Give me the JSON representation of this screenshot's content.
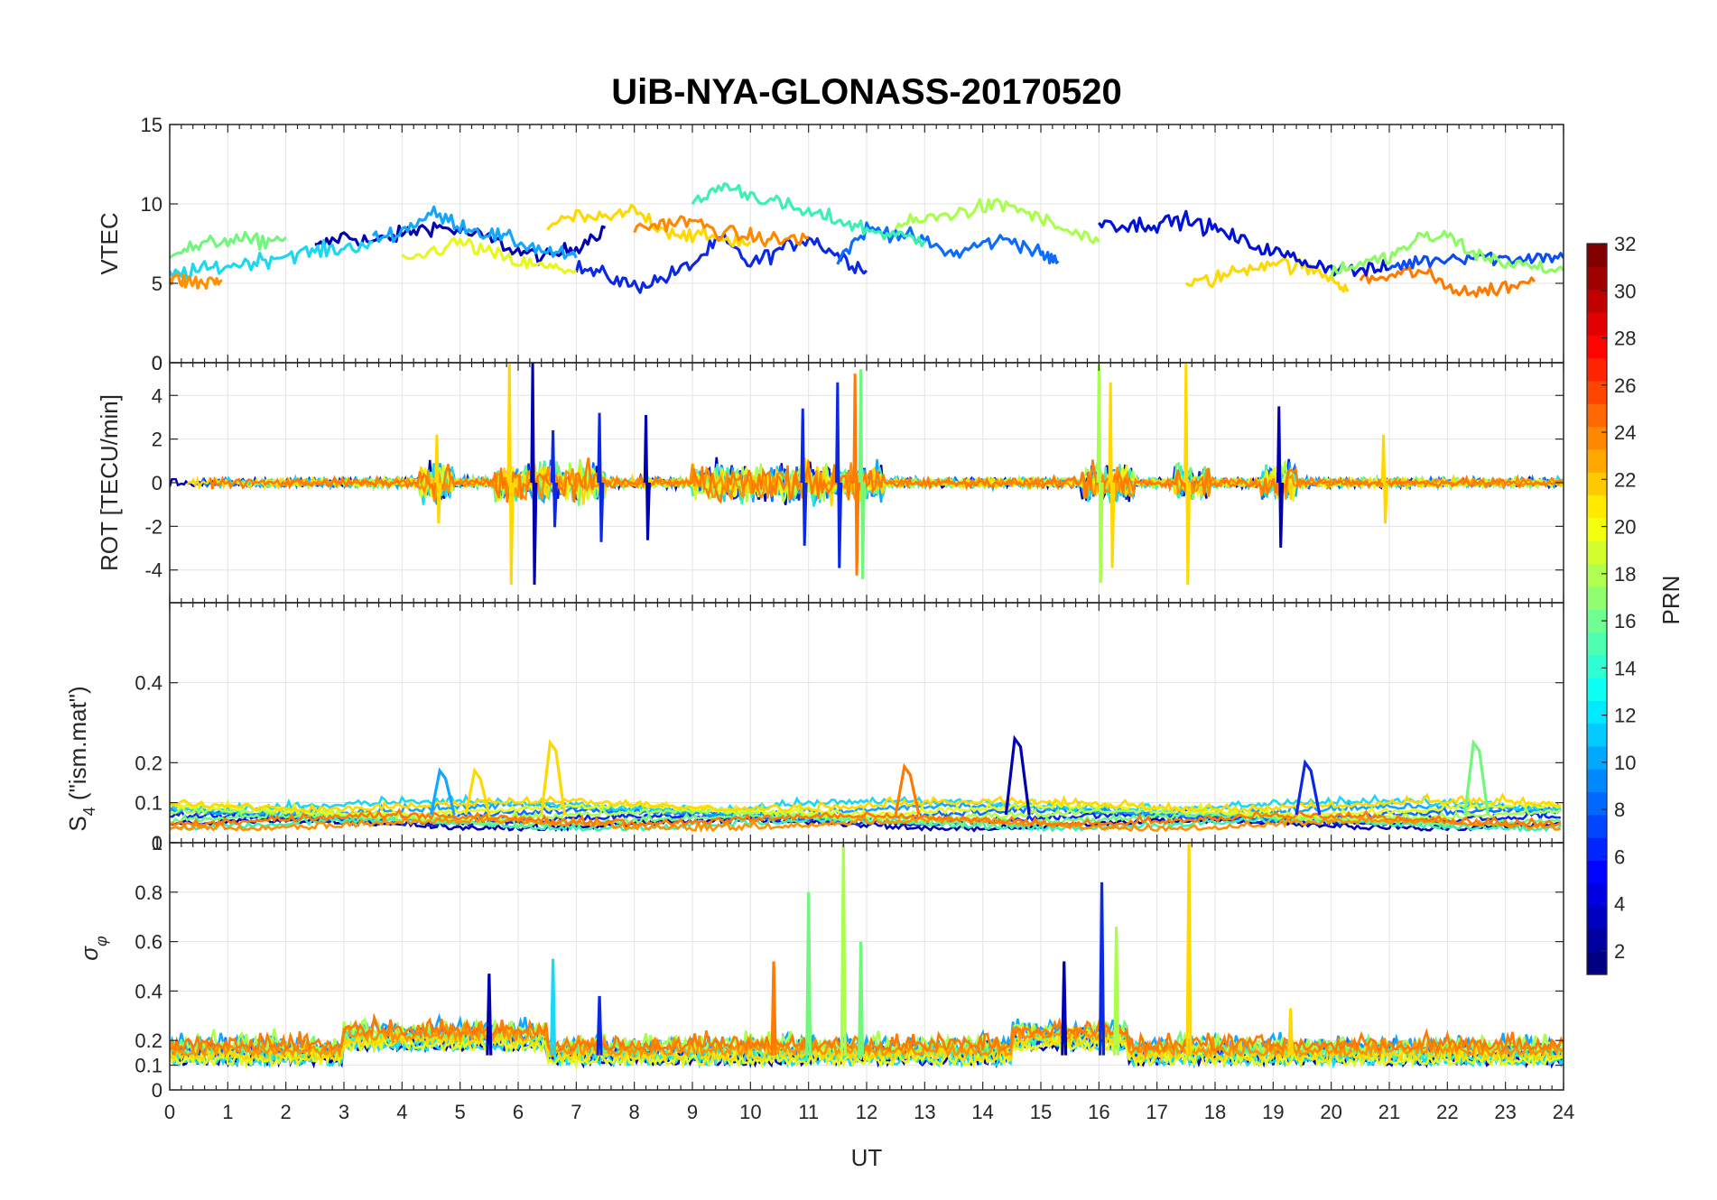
{
  "figure": {
    "title": "UiB-NYA-GLONASS-20170520",
    "xlabel": "UT"
  },
  "colorbar": {
    "label": "PRN",
    "range": [
      1,
      32
    ],
    "ticks": [
      "2",
      "4",
      "6",
      "8",
      "10",
      "12",
      "14",
      "16",
      "18",
      "20",
      "22",
      "24",
      "26",
      "28",
      "30",
      "32"
    ]
  },
  "chart_data": [
    {
      "type": "line",
      "id": "vtec",
      "ylabel": "VTEC",
      "xlim": [
        0,
        24
      ],
      "ylim": [
        0,
        15
      ],
      "yticks": [
        0,
        5,
        10,
        15
      ],
      "ytick_labels": [
        "0",
        "5",
        "10",
        "15"
      ],
      "grid": true,
      "series": [
        {
          "prn": 2,
          "color": "#0000b0",
          "x": [
            2.5,
            3,
            3.5,
            4,
            4.5,
            5,
            5.5,
            6,
            6.5,
            7,
            7.5
          ],
          "y": [
            7.2,
            8,
            7.6,
            8.1,
            8.6,
            8.3,
            7.8,
            7.0,
            6.6,
            7.3,
            8.5
          ]
        },
        {
          "prn": 4,
          "color": "#0a28e6",
          "x": [
            7,
            7.5,
            8,
            8.5,
            9,
            9.5,
            10,
            10.5,
            11,
            11.5,
            12
          ],
          "y": [
            6,
            5.5,
            4.8,
            5.3,
            6.2,
            7.8,
            6.2,
            7.1,
            7.9,
            6.8,
            5.8
          ]
        },
        {
          "prn": 8,
          "color": "#0c6cff",
          "x": [
            11.5,
            12,
            12.5,
            13,
            13.5,
            14,
            14.5,
            15,
            15.3
          ],
          "y": [
            6.5,
            8.4,
            8.2,
            7.6,
            6.8,
            7.5,
            7.8,
            6.8,
            6.4
          ]
        },
        {
          "prn": 10,
          "color": "#12a6ff",
          "x": [
            3.5,
            4,
            4.5,
            5,
            5.5,
            6,
            6.5,
            7
          ],
          "y": [
            7.8,
            8.3,
            9.4,
            8.7,
            8.1,
            7.6,
            7.0,
            6.6
          ]
        },
        {
          "prn": 12,
          "color": "#19d8f0",
          "x": [
            0,
            0.5,
            1,
            1.5,
            2,
            2.5,
            3,
            3.5
          ],
          "y": [
            5.5,
            5.8,
            6.1,
            6.4,
            6.8,
            7.0,
            7.2,
            7.6
          ]
        },
        {
          "prn": 14,
          "color": "#3cf0b4",
          "x": [
            9,
            9.5,
            10,
            10.5,
            11,
            11.5,
            12,
            12.5,
            13
          ],
          "y": [
            9.8,
            11.2,
            10.6,
            10.0,
            9.4,
            9.0,
            8.4,
            8.0,
            7.7
          ]
        },
        {
          "prn": 16,
          "color": "#70f87c",
          "x": [
            0,
            0.5,
            1,
            1.5,
            2
          ],
          "y": [
            7.0,
            7.3,
            7.8,
            7.6,
            7.9
          ]
        },
        {
          "prn": 17,
          "color": "#a8ff4c",
          "x": [
            12.5,
            13,
            13.5,
            14,
            14.5,
            15,
            15.5,
            16
          ],
          "y": [
            8.6,
            9.0,
            9.4,
            9.8,
            9.9,
            9.0,
            8.2,
            7.6
          ]
        },
        {
          "prn": 19,
          "color": "#e8f81c",
          "x": [
            4,
            4.5,
            5,
            5.5,
            6,
            6.5,
            7
          ],
          "y": [
            6.2,
            7.0,
            7.6,
            6.9,
            6.3,
            6.0,
            5.8
          ]
        },
        {
          "prn": 20,
          "color": "#ffd800",
          "x": [
            6.5,
            7,
            7.5,
            8,
            8.5,
            9,
            9.5,
            10
          ],
          "y": [
            8.6,
            9.2,
            9.0,
            9.6,
            8.4,
            8.0,
            7.8,
            7.6
          ]
        },
        {
          "prn": 21,
          "color": "#ffd800",
          "x": [
            17.5,
            18,
            18.5,
            19,
            19.5,
            20,
            20.3
          ],
          "y": [
            4.8,
            5.3,
            5.9,
            6.4,
            6.0,
            5.4,
            4.6
          ]
        },
        {
          "prn": 23,
          "color": "#ff9000",
          "x": [
            0,
            0.3,
            0.6,
            0.9
          ],
          "y": [
            5.3,
            5.1,
            5.0,
            5.2
          ]
        },
        {
          "prn": 23,
          "color": "#ff8800",
          "x": [
            8,
            8.5,
            9,
            9.5,
            10,
            10.5,
            11
          ],
          "y": [
            8.4,
            8.8,
            8.9,
            8.2,
            7.9,
            7.7,
            7.9
          ]
        },
        {
          "prn": 24,
          "color": "#ff7a00",
          "x": [
            20.5,
            21,
            21.5,
            22,
            22.5,
            23,
            23.5
          ],
          "y": [
            5.2,
            5.4,
            5.8,
            4.8,
            4.4,
            4.8,
            5.1
          ]
        },
        {
          "prn": 3,
          "color": "#0012d8",
          "x": [
            16,
            16.5,
            17,
            17.5,
            18,
            18.5,
            19,
            19.5,
            20,
            20.5,
            21
          ],
          "y": [
            9.0,
            8.6,
            8.8,
            9.0,
            8.4,
            7.6,
            7.0,
            6.4,
            6.0,
            5.8,
            5.9
          ]
        },
        {
          "prn": 6,
          "color": "#0a4cf8",
          "x": [
            21,
            21.5,
            22,
            22.5,
            23,
            23.5,
            24
          ],
          "y": [
            6.0,
            6.4,
            6.6,
            6.8,
            6.5,
            6.7,
            6.6
          ]
        },
        {
          "prn": 18,
          "color": "#8cfc64",
          "x": [
            20,
            20.5,
            21,
            21.5,
            22,
            22.5,
            23,
            23.5,
            24
          ],
          "y": [
            5.8,
            6.2,
            6.6,
            7.8,
            8.0,
            6.8,
            6.3,
            6.0,
            5.8
          ]
        }
      ]
    },
    {
      "type": "line",
      "id": "rot",
      "ylabel": "ROT [TECU/min]",
      "xlim": [
        0,
        24
      ],
      "ylim": [
        -5.5,
        5.5
      ],
      "yticks": [
        -4,
        -2,
        0,
        2,
        4
      ],
      "ytick_labels": [
        "-4",
        "-2",
        "0",
        "2",
        "4"
      ],
      "top_tick_label": "0",
      "grid": true,
      "spikes": [
        {
          "x": 4.6,
          "amp": 2.2,
          "color": "#ffd800"
        },
        {
          "x": 5.85,
          "amp": 5.5,
          "color": "#ffd800"
        },
        {
          "x": 6.25,
          "amp": 5.5,
          "color": "#0000b0"
        },
        {
          "x": 6.6,
          "amp": 2.4,
          "color": "#0a28e6"
        },
        {
          "x": 7.4,
          "amp": 3.2,
          "color": "#0a28e6"
        },
        {
          "x": 8.2,
          "amp": 3.1,
          "color": "#0000b0"
        },
        {
          "x": 10.9,
          "amp": 3.4,
          "color": "#0a28e6"
        },
        {
          "x": 11.5,
          "amp": 4.6,
          "color": "#0a28e6"
        },
        {
          "x": 11.8,
          "amp": 5.0,
          "color": "#ff7a00"
        },
        {
          "x": 11.9,
          "amp": 5.2,
          "color": "#70f87c"
        },
        {
          "x": 16.0,
          "amp": 5.4,
          "color": "#a8ff4c"
        },
        {
          "x": 16.2,
          "amp": 4.6,
          "color": "#ffd800"
        },
        {
          "x": 17.5,
          "amp": 5.5,
          "color": "#ffd800"
        },
        {
          "x": 19.1,
          "amp": 3.5,
          "color": "#0000b0"
        },
        {
          "x": 20.9,
          "amp": 2.2,
          "color": "#ffd800"
        }
      ]
    },
    {
      "type": "line",
      "id": "s4",
      "ylabel": "S4 (\"ism.mat\")",
      "xlim": [
        0,
        24
      ],
      "ylim": [
        0,
        0.6
      ],
      "yticks": [
        0,
        0.1,
        0.2,
        0.4
      ],
      "ytick_labels": [
        "0",
        "0.1",
        "0.2",
        "0.4"
      ],
      "grid": true,
      "peaks": [
        {
          "x": 4.7,
          "y": 0.18,
          "color": "#12a6ff"
        },
        {
          "x": 5.3,
          "y": 0.18,
          "color": "#ffd800"
        },
        {
          "x": 6.6,
          "y": 0.25,
          "color": "#ffd800"
        },
        {
          "x": 12.7,
          "y": 0.19,
          "color": "#ff7a00"
        },
        {
          "x": 14.6,
          "y": 0.26,
          "color": "#0000b0"
        },
        {
          "x": 19.6,
          "y": 0.2,
          "color": "#0a28e6"
        },
        {
          "x": 22.5,
          "y": 0.25,
          "color": "#70f87c"
        }
      ]
    },
    {
      "type": "line",
      "id": "sigma_phi",
      "ylabel": "σφ",
      "xlim": [
        0,
        24
      ],
      "ylim": [
        0,
        1
      ],
      "yticks": [
        0,
        0.1,
        0.2,
        0.4,
        0.6,
        0.8,
        1
      ],
      "ytick_labels": [
        "0",
        "0.1",
        "0.2",
        "0.4",
        "0.6",
        "0.8",
        "1"
      ],
      "xticks": [
        0,
        1,
        2,
        3,
        4,
        5,
        6,
        7,
        8,
        9,
        10,
        11,
        12,
        13,
        14,
        15,
        16,
        17,
        18,
        19,
        20,
        21,
        22,
        23,
        24
      ],
      "xtick_labels": [
        "0",
        "1",
        "2",
        "3",
        "4",
        "5",
        "6",
        "7",
        "8",
        "9",
        "10",
        "11",
        "12",
        "13",
        "14",
        "15",
        "16",
        "17",
        "18",
        "19",
        "20",
        "21",
        "22",
        "23",
        "24"
      ],
      "grid": true,
      "peaks": [
        {
          "x": 5.5,
          "y": 0.47,
          "color": "#0000b0"
        },
        {
          "x": 6.6,
          "y": 0.53,
          "color": "#19d8f0"
        },
        {
          "x": 7.4,
          "y": 0.38,
          "color": "#0a28e6"
        },
        {
          "x": 10.4,
          "y": 0.52,
          "color": "#ff7a00"
        },
        {
          "x": 11.0,
          "y": 0.8,
          "color": "#70f87c"
        },
        {
          "x": 11.6,
          "y": 1.0,
          "color": "#a8ff4c"
        },
        {
          "x": 11.9,
          "y": 0.6,
          "color": "#70f87c"
        },
        {
          "x": 15.4,
          "y": 0.52,
          "color": "#0000b0"
        },
        {
          "x": 16.05,
          "y": 0.84,
          "color": "#0a28e6"
        },
        {
          "x": 16.3,
          "y": 0.66,
          "color": "#a8ff4c"
        },
        {
          "x": 17.55,
          "y": 1.0,
          "color": "#ffd800"
        },
        {
          "x": 19.3,
          "y": 0.33,
          "color": "#ffd800"
        }
      ]
    }
  ]
}
